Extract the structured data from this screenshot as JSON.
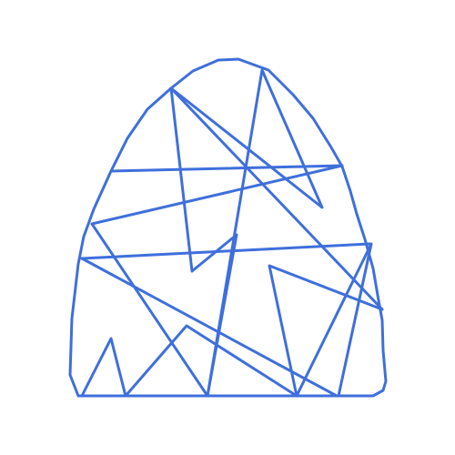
{
  "drawing": {
    "stroke_color": "#3f6fdc",
    "background_color": "#ffffff"
  }
}
